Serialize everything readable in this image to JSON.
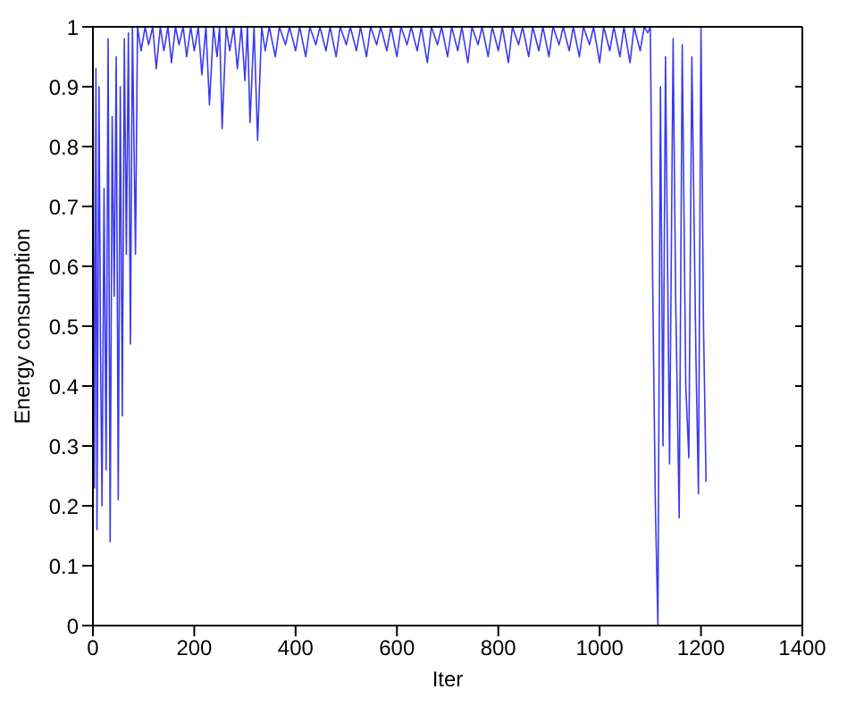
{
  "chart_data": {
    "type": "line",
    "xlabel": "Iter",
    "ylabel": "Energy consumption",
    "x": [
      0,
      3,
      6,
      8,
      12,
      15,
      18,
      22,
      26,
      30,
      34,
      38,
      42,
      46,
      50,
      54,
      58,
      62,
      66,
      70,
      74,
      78,
      84,
      88,
      95,
      103,
      110,
      118,
      125,
      133,
      140,
      148,
      155,
      163,
      170,
      178,
      185,
      193,
      200,
      208,
      215,
      223,
      230,
      238,
      245,
      250,
      255,
      263,
      270,
      278,
      285,
      293,
      300,
      305,
      310,
      318,
      325,
      333,
      340,
      348,
      360,
      368,
      380,
      388,
      400,
      408,
      420,
      428,
      440,
      448,
      460,
      468,
      480,
      488,
      500,
      508,
      520,
      528,
      540,
      548,
      560,
      568,
      580,
      588,
      600,
      608,
      620,
      628,
      640,
      648,
      660,
      668,
      680,
      688,
      700,
      708,
      720,
      728,
      740,
      748,
      760,
      768,
      780,
      788,
      800,
      808,
      820,
      828,
      840,
      848,
      860,
      868,
      880,
      888,
      900,
      908,
      920,
      928,
      940,
      948,
      960,
      968,
      980,
      988,
      1000,
      1008,
      1020,
      1028,
      1040,
      1048,
      1060,
      1068,
      1080,
      1088,
      1095,
      1100,
      1105,
      1110,
      1115,
      1120,
      1125,
      1130,
      1138,
      1145,
      1150,
      1157,
      1163,
      1170,
      1176,
      1182,
      1190,
      1195,
      1200,
      1205,
      1210
    ],
    "series": [
      {
        "color": "#3a3af0",
        "values": [
          1,
          0.23,
          0.93,
          0.16,
          0.9,
          0.46,
          0.2,
          0.73,
          0.26,
          0.98,
          0.14,
          0.85,
          0.55,
          0.95,
          0.21,
          0.9,
          0.35,
          0.98,
          0.62,
          0.99,
          0.47,
          1,
          0.62,
          1,
          0.96,
          1,
          0.97,
          1,
          0.93,
          1,
          0.96,
          1,
          0.94,
          1,
          0.97,
          1,
          0.95,
          1,
          0.96,
          1,
          0.92,
          1,
          0.87,
          1,
          0.95,
          1,
          0.83,
          1,
          0.96,
          1,
          0.93,
          1,
          0.91,
          1,
          0.84,
          1,
          0.81,
          1,
          0.96,
          1,
          0.95,
          1,
          0.97,
          1,
          0.96,
          1,
          0.95,
          1,
          0.97,
          1,
          0.96,
          1,
          0.95,
          1,
          0.97,
          1,
          0.96,
          1,
          0.95,
          1,
          0.97,
          1,
          0.96,
          1,
          0.95,
          1,
          0.97,
          1,
          0.96,
          1,
          0.94,
          1,
          0.97,
          1,
          0.95,
          1,
          0.96,
          1,
          0.94,
          1,
          0.97,
          1,
          0.95,
          1,
          0.96,
          1,
          0.94,
          1,
          0.97,
          1,
          0.95,
          1,
          0.96,
          1,
          0.95,
          1,
          0.97,
          1,
          0.96,
          1,
          0.95,
          1,
          0.97,
          1,
          0.94,
          1,
          0.96,
          1,
          0.95,
          1,
          0.94,
          1,
          0.96,
          1,
          0.99,
          1,
          0.55,
          0.2,
          0,
          0.9,
          0.3,
          0.95,
          0.27,
          0.98,
          0.55,
          0.18,
          0.97,
          0.4,
          0.28,
          0.95,
          0.45,
          0.22,
          1,
          0.5,
          0.24
        ]
      }
    ],
    "xlim": [
      0,
      1400
    ],
    "xticks": [
      0,
      200,
      400,
      600,
      800,
      1000,
      1200,
      1400
    ],
    "ylim": [
      0,
      1
    ],
    "yticks": [
      0,
      0.1,
      0.2,
      0.3,
      0.4,
      0.5,
      0.6,
      0.7,
      0.8,
      0.9,
      1
    ],
    "grid": false,
    "legend": false,
    "marker": "none",
    "line_style": "solid"
  }
}
